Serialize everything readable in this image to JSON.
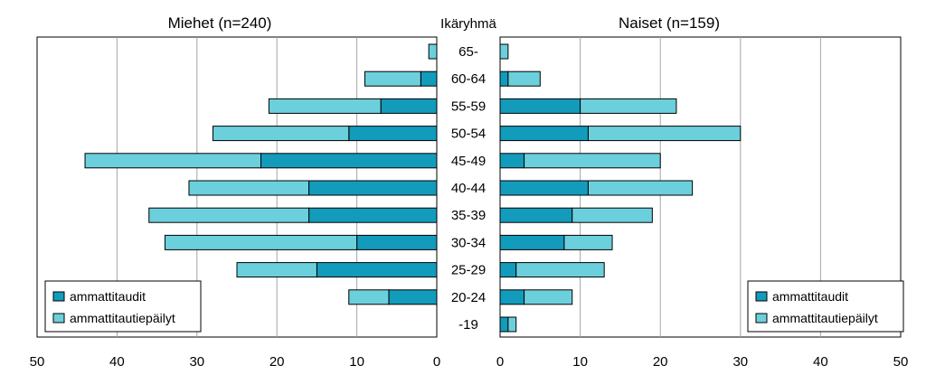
{
  "chart_data": {
    "type": "bar",
    "stacked": true,
    "orientation": "horizontal",
    "layout": "population-pyramid",
    "center_label": "Ikäryhmä",
    "categories": [
      "65-",
      "60-64",
      "55-59",
      "50-54",
      "45-49",
      "40-44",
      "35-39",
      "30-34",
      "25-29",
      "20-24",
      "-19"
    ],
    "series_names": [
      "ammattitaudit",
      "ammattitautiepäilyt"
    ],
    "colors": {
      "ammattitaudit": "#139bbb",
      "ammattitautiepailyt": "#6ccfdc",
      "grid": "#a6a6a6",
      "border": "#000000"
    },
    "panels": [
      {
        "title": "Miehet (n=240)",
        "direction": "left",
        "xlim": [
          0,
          50
        ],
        "ticks": [
          50,
          40,
          30,
          20,
          10,
          0
        ],
        "grid": true,
        "legend": "bottom-left",
        "series": [
          {
            "name": "ammattitaudit",
            "values": [
              0,
              2,
              7,
              11,
              22,
              16,
              16,
              10,
              15,
              6,
              0
            ]
          },
          {
            "name": "ammattitautiepäilyt",
            "values": [
              1,
              7,
              14,
              17,
              22,
              15,
              20,
              24,
              10,
              5,
              0
            ]
          }
        ]
      },
      {
        "title": "Naiset (n=159)",
        "direction": "right",
        "xlim": [
          0,
          50
        ],
        "ticks": [
          0,
          10,
          20,
          30,
          40,
          50
        ],
        "grid": true,
        "legend": "bottom-right",
        "series": [
          {
            "name": "ammattitaudit",
            "values": [
              0,
              1,
              10,
              11,
              3,
              11,
              9,
              8,
              2,
              3,
              1
            ]
          },
          {
            "name": "ammattitautiepäilyt",
            "values": [
              1,
              4,
              12,
              19,
              17,
              13,
              10,
              6,
              11,
              6,
              1
            ]
          }
        ]
      }
    ]
  }
}
